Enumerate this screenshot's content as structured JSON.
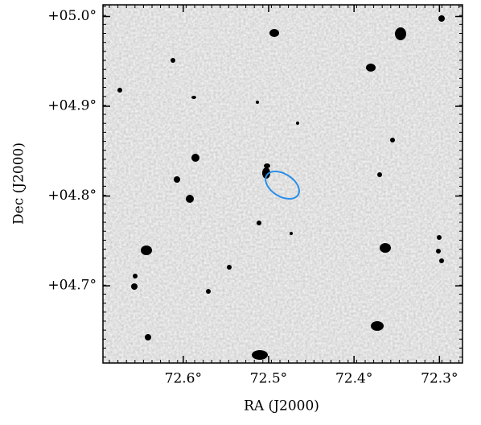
{
  "chart_data": {
    "type": "image",
    "xlabel": "RA (J2000)",
    "ylabel": "Dec (J2000)",
    "xlim": [
      72.694,
      72.273
    ],
    "ylim": [
      4.614,
      5.013
    ],
    "xticks": [
      {
        "value": 72.6,
        "label": "72.6°"
      },
      {
        "value": 72.5,
        "label": "72.5°"
      },
      {
        "value": 72.4,
        "label": "72.4°"
      },
      {
        "value": 72.3,
        "label": "72.3°"
      }
    ],
    "yticks": [
      {
        "value": 4.7,
        "label": "+04.7°"
      },
      {
        "value": 4.8,
        "label": "+04.8°"
      },
      {
        "value": 4.9,
        "label": "+04.9°"
      },
      {
        "value": 5.0,
        "label": "+05.0°"
      }
    ]
  }
}
